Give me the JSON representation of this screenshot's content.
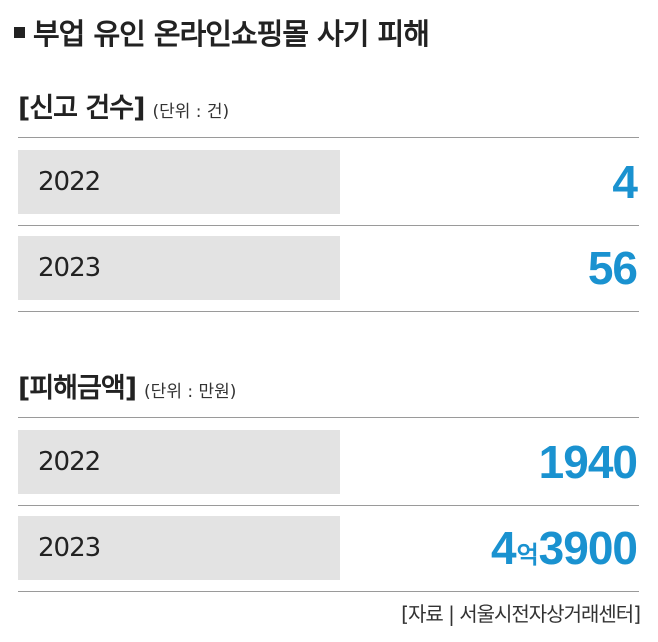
{
  "title": "부업 유인 온라인쇼핑몰 사기 피해",
  "sections": [
    {
      "label": "[신고 건수]",
      "unit": "(단위 : 건)",
      "rows": [
        {
          "year": "2022",
          "value": "4"
        },
        {
          "year": "2023",
          "value": "56"
        }
      ]
    },
    {
      "label": "[피해금액]",
      "unit": "(단위 : 만원)",
      "rows": [
        {
          "year": "2022",
          "value": "1940"
        },
        {
          "year": "2023",
          "value_part1": "4",
          "value_unit": "억",
          "value_part2": "3900"
        }
      ]
    }
  ],
  "source": "[자료 | 서울시전자상거래센터]",
  "chart_data": [
    {
      "type": "table",
      "title": "[신고 건수]",
      "unit": "(단위 : 건)",
      "categories": [
        "2022",
        "2023"
      ],
      "values": [
        4,
        56
      ]
    },
    {
      "type": "table",
      "title": "[피해금액]",
      "unit": "(단위 : 만원)",
      "categories": [
        "2022",
        "2023"
      ],
      "values": [
        1940,
        43900
      ]
    }
  ],
  "colors": {
    "value": "#1a92d0",
    "year_box": "#e3e3e3",
    "rule": "#9a9a9a"
  }
}
